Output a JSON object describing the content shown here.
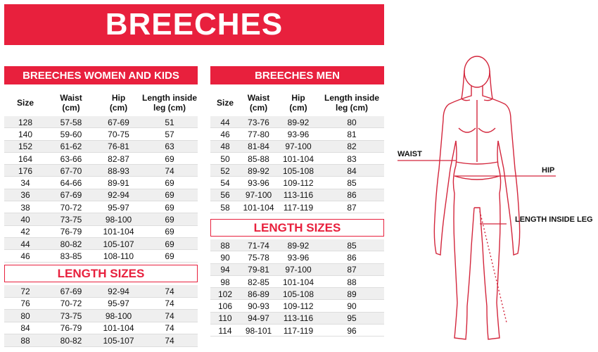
{
  "title": "BREECHES",
  "tables": [
    {
      "title": "BREECHES WOMEN AND KIDS",
      "columns": [
        "Size",
        "Waist\n(cm)",
        "Hip\n(cm)",
        "Length inside\nleg (cm)"
      ],
      "rows": [
        [
          "128",
          "57-58",
          "67-69",
          "51"
        ],
        [
          "140",
          "59-60",
          "70-75",
          "57"
        ],
        [
          "152",
          "61-62",
          "76-81",
          "63"
        ],
        [
          "164",
          "63-66",
          "82-87",
          "69"
        ],
        [
          "176",
          "67-70",
          "88-93",
          "74"
        ],
        [
          "34",
          "64-66",
          "89-91",
          "69"
        ],
        [
          "36",
          "67-69",
          "92-94",
          "69"
        ],
        [
          "38",
          "70-72",
          "95-97",
          "69"
        ],
        [
          "40",
          "73-75",
          "98-100",
          "69"
        ],
        [
          "42",
          "76-79",
          "101-104",
          "69"
        ],
        [
          "44",
          "80-82",
          "105-107",
          "69"
        ],
        [
          "46",
          "83-85",
          "108-110",
          "69"
        ]
      ],
      "length_title": "LENGTH SIZES",
      "length_rows": [
        [
          "72",
          "67-69",
          "92-94",
          "74"
        ],
        [
          "76",
          "70-72",
          "95-97",
          "74"
        ],
        [
          "80",
          "73-75",
          "98-100",
          "74"
        ],
        [
          "84",
          "76-79",
          "101-104",
          "74"
        ],
        [
          "88",
          "80-82",
          "105-107",
          "74"
        ]
      ]
    },
    {
      "title": "BREECHES MEN",
      "columns": [
        "Size",
        "Waist\n(cm)",
        "Hip\n(cm)",
        "Length inside\nleg (cm)"
      ],
      "rows": [
        [
          "44",
          "73-76",
          "89-92",
          "80"
        ],
        [
          "46",
          "77-80",
          "93-96",
          "81"
        ],
        [
          "48",
          "81-84",
          "97-100",
          "82"
        ],
        [
          "50",
          "85-88",
          "101-104",
          "83"
        ],
        [
          "52",
          "89-92",
          "105-108",
          "84"
        ],
        [
          "54",
          "93-96",
          "109-112",
          "85"
        ],
        [
          "56",
          "97-100",
          "113-116",
          "86"
        ],
        [
          "58",
          "101-104",
          "117-119",
          "87"
        ]
      ],
      "length_title": "LENGTH SIZES",
      "length_rows": [
        [
          "88",
          "71-74",
          "89-92",
          "85"
        ],
        [
          "90",
          "75-78",
          "93-96",
          "86"
        ],
        [
          "94",
          "79-81",
          "97-100",
          "87"
        ],
        [
          "98",
          "82-85",
          "101-104",
          "88"
        ],
        [
          "102",
          "86-89",
          "105-108",
          "89"
        ],
        [
          "106",
          "90-93",
          "109-112",
          "90"
        ],
        [
          "110",
          "94-97",
          "113-116",
          "95"
        ],
        [
          "114",
          "98-101",
          "117-119",
          "96"
        ]
      ]
    }
  ],
  "figure": {
    "labels": [
      "WAIST",
      "HIP",
      "LENGTH INSIDE LEG"
    ]
  }
}
